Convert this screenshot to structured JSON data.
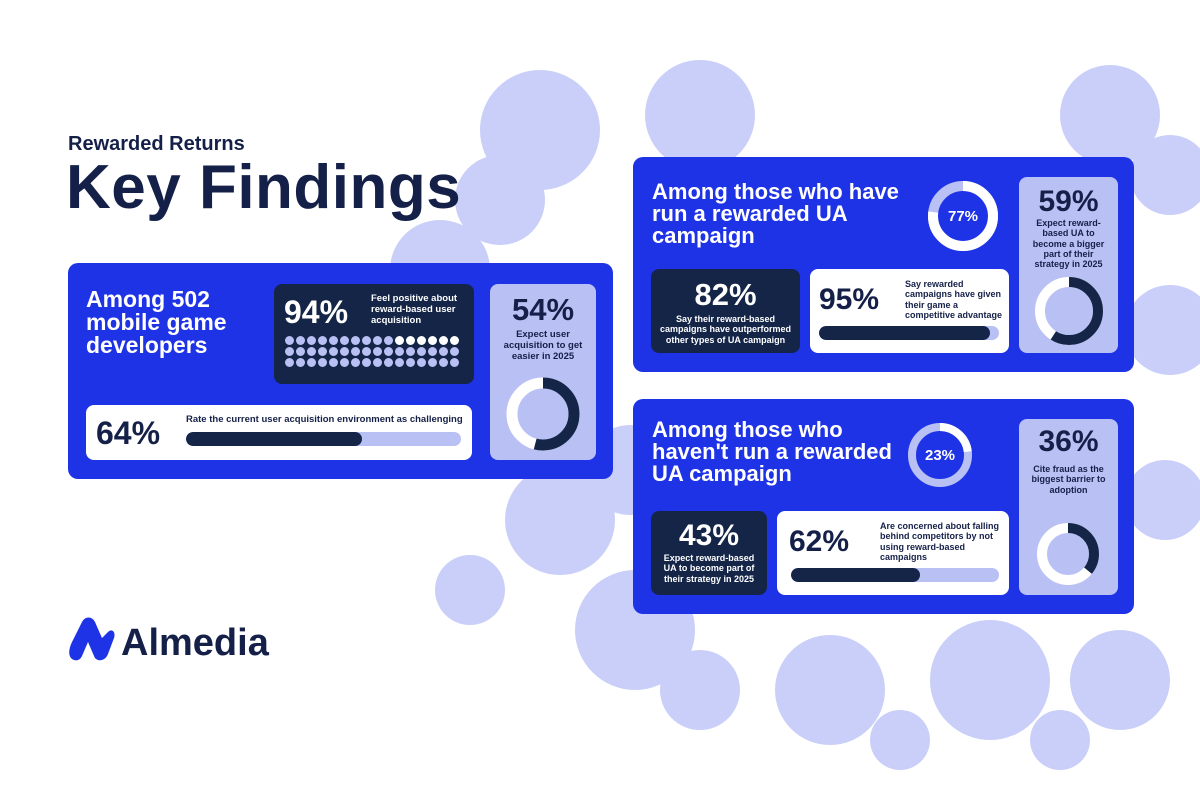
{
  "header": {
    "kicker": "Rewarded Returns",
    "title": "Key Findings"
  },
  "panel_main": {
    "heading": "Among 502 mobile game developers",
    "stat_94": {
      "value": "94%",
      "text": "Feel positive about reward-based user acquisition",
      "dots_total": 48,
      "dots_highlight": 6
    },
    "stat_54": {
      "value": "54%",
      "text": "Expect user acquisition to get easier in 2025",
      "fraction": 0.54
    },
    "stat_64": {
      "value": "64%",
      "text": "Rate the current user acquisition environment as challenging",
      "fraction": 0.64
    }
  },
  "panel_run": {
    "heading": "Among those who have run a rewarded UA campaign",
    "ring": {
      "value": "77%",
      "fraction": 0.77
    },
    "stat_59": {
      "value": "59%",
      "text": "Expect reward-based UA to become a bigger part of their strategy in 2025",
      "fraction": 0.59
    },
    "stat_82": {
      "value": "82%",
      "text": "Say their reward-based campaigns have outperformed other types of UA campaign"
    },
    "stat_95": {
      "value": "95%",
      "text": "Say rewarded campaigns have given their game a competitive advantage",
      "fraction": 0.95
    }
  },
  "panel_notrun": {
    "heading": "Among those who haven't run a rewarded UA campaign",
    "ring": {
      "value": "23%",
      "fraction": 0.23
    },
    "stat_36": {
      "value": "36%",
      "text": "Cite fraud as the biggest barrier to adoption",
      "fraction": 0.36
    },
    "stat_43": {
      "value": "43%",
      "text": "Expect reward-based UA to become part of their strategy in 2025"
    },
    "stat_62": {
      "value": "62%",
      "text": "Are concerned about falling behind competitors by not using reward-based campaigns",
      "fraction": 0.62
    }
  },
  "brand": {
    "name": "Almedia"
  },
  "colors": {
    "blue": "#1f33e6",
    "navy": "#142548",
    "lavender": "#b9c0f4",
    "white": "#ffffff"
  }
}
